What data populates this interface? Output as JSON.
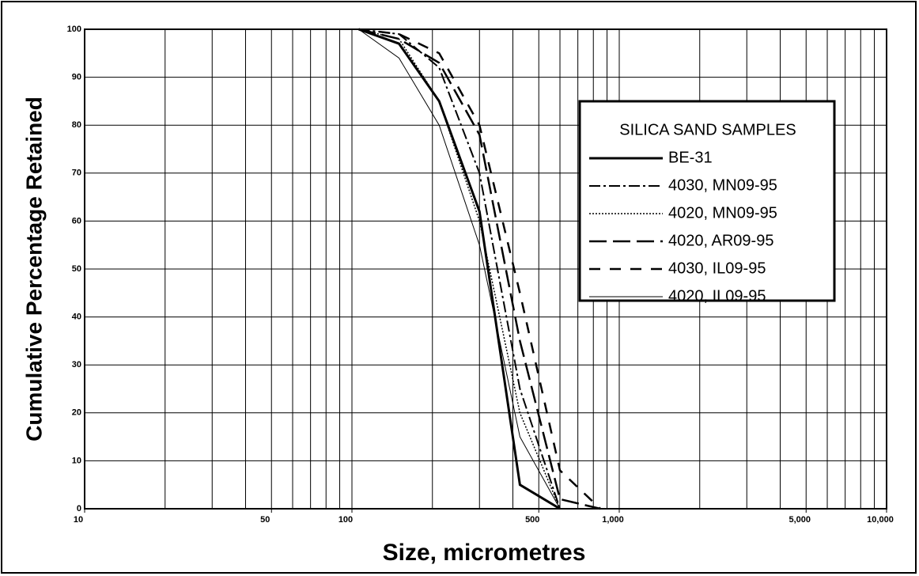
{
  "chart_data": {
    "type": "line",
    "xlabel": "Size, micrometres",
    "ylabel": "Cumulative Percentage Retained",
    "legend_title": "SILICA SAND SAMPLES",
    "legend": "upper right",
    "xscale": "log",
    "grid": true,
    "x": [
      106,
      150,
      212,
      300,
      425,
      600,
      850
    ],
    "series": [
      {
        "name": "BE-31",
        "color": "#000000",
        "width": 3,
        "dash": "",
        "values": [
          100,
          97,
          85,
          62,
          5,
          0,
          null
        ]
      },
      {
        "name": "4030, MN09-95",
        "color": "#000000",
        "width": 2,
        "dash": "14 4 3 4",
        "values": [
          100,
          99,
          92,
          70,
          25,
          0,
          null
        ]
      },
      {
        "name": "4020, MN09-95",
        "color": "#000000",
        "width": 1.5,
        "dash": "2 2",
        "values": [
          100,
          98,
          85,
          60,
          20,
          0,
          null
        ]
      },
      {
        "name": "4020, AR09-95",
        "color": "#000000",
        "width": 2.5,
        "dash": "22 8",
        "values": [
          100,
          98,
          93,
          78,
          35,
          2,
          0
        ]
      },
      {
        "name": "4030, IL09-95",
        "color": "#000000",
        "width": 2.5,
        "dash": "14 12",
        "values": [
          100,
          99,
          95,
          80,
          45,
          8,
          0
        ]
      },
      {
        "name": "4020, IL09-95",
        "color": "#000000",
        "width": 1,
        "dash": "",
        "values": [
          100,
          94,
          80,
          55,
          15,
          0,
          null
        ]
      }
    ],
    "xlim": [
      10,
      10000
    ],
    "ylim": [
      0,
      100
    ],
    "xticks": [
      10,
      50,
      100,
      500,
      {
        "value": 1000,
        "label": "1,000"
      },
      {
        "value": 5000,
        "label": "5,000"
      },
      {
        "value": 10000,
        "label": "10,000"
      }
    ],
    "xgrid": [
      10,
      20,
      30,
      40,
      50,
      60,
      70,
      80,
      90,
      100,
      200,
      300,
      400,
      500,
      600,
      700,
      800,
      900,
      1000,
      2000,
      3000,
      4000,
      5000,
      6000,
      7000,
      8000,
      9000,
      10000
    ],
    "yticks": [
      0,
      10,
      20,
      30,
      40,
      50,
      60,
      70,
      80,
      90,
      100
    ]
  }
}
